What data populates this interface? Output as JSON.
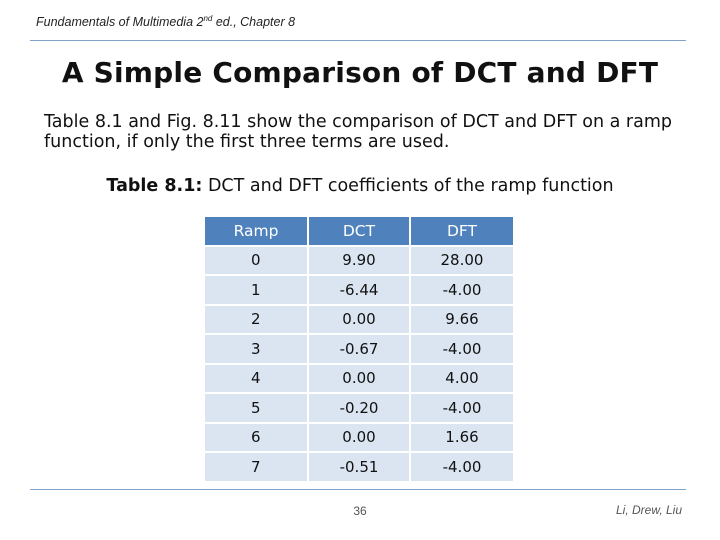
{
  "header": {
    "prefix": "Fundamentals of Multimedia 2",
    "superscript": "nd",
    "suffix": " ed., Chapter 8"
  },
  "title": "A Simple Comparison of DCT and DFT",
  "body_text": "Table 8.1 and Fig. 8.11 show the comparison of DCT and DFT on a ramp function, if only the first three terms are used.",
  "caption": {
    "label": "Table 8.1:",
    "text": " DCT and DFT coefficients of the ramp function"
  },
  "table": {
    "headers": [
      "Ramp",
      "DCT",
      "DFT"
    ],
    "rows": [
      [
        "0",
        "9.90",
        "28.00"
      ],
      [
        "1",
        "-6.44",
        "-4.00"
      ],
      [
        "2",
        "0.00",
        "9.66"
      ],
      [
        "3",
        "-0.67",
        "-4.00"
      ],
      [
        "4",
        "0.00",
        "4.00"
      ],
      [
        "5",
        "-0.20",
        "-4.00"
      ],
      [
        "6",
        "0.00",
        "1.66"
      ],
      [
        "7",
        "-0.51",
        "-4.00"
      ]
    ]
  },
  "footer": {
    "page_number": "36",
    "authors": "Li, Drew, Liu"
  },
  "colors": {
    "header_fill": "#4f81bd",
    "row_fill": "#dbe5f1",
    "rule": "#7fa3c8"
  }
}
